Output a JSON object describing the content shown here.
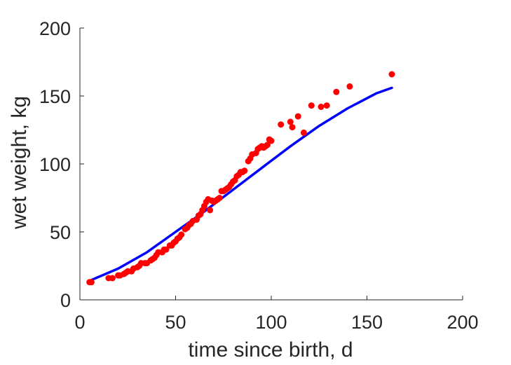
{
  "chart_data": {
    "type": "scatter",
    "title": "",
    "xlabel": "time since birth, d",
    "ylabel": "wet weight, kg",
    "xlim": [
      0,
      200
    ],
    "ylim": [
      0,
      200
    ],
    "xticks": [
      0,
      50,
      100,
      150,
      200
    ],
    "yticks": [
      0,
      50,
      100,
      150,
      200
    ],
    "xtick_labels": [
      "0",
      "50",
      "100",
      "150",
      "200"
    ],
    "ytick_labels": [
      "0",
      "50",
      "100",
      "150",
      "200"
    ],
    "grid": false,
    "legend": "none",
    "series": [
      {
        "kind": "scatter",
        "color": "#ff0000",
        "points": [
          [
            5,
            13
          ],
          [
            6,
            13
          ],
          [
            15,
            16
          ],
          [
            17,
            16
          ],
          [
            20,
            18
          ],
          [
            21,
            18
          ],
          [
            23,
            19
          ],
          [
            24,
            20
          ],
          [
            25,
            21
          ],
          [
            27,
            21
          ],
          [
            28,
            23
          ],
          [
            30,
            24
          ],
          [
            31,
            25
          ],
          [
            32,
            27
          ],
          [
            34,
            27
          ],
          [
            35,
            27
          ],
          [
            37,
            29
          ],
          [
            38,
            30
          ],
          [
            39,
            31
          ],
          [
            40,
            33
          ],
          [
            41,
            35
          ],
          [
            43,
            35
          ],
          [
            44,
            37
          ],
          [
            45,
            37
          ],
          [
            47,
            40
          ],
          [
            48,
            40
          ],
          [
            49,
            42
          ],
          [
            50,
            43
          ],
          [
            51,
            45
          ],
          [
            52,
            46
          ],
          [
            53,
            48
          ],
          [
            55,
            52
          ],
          [
            56,
            53
          ],
          [
            57,
            55
          ],
          [
            58,
            56
          ],
          [
            59,
            58
          ],
          [
            61,
            59
          ],
          [
            62,
            62
          ],
          [
            63,
            63
          ],
          [
            64,
            66
          ],
          [
            65,
            69
          ],
          [
            66,
            72
          ],
          [
            67,
            74
          ],
          [
            68,
            66
          ],
          [
            69,
            73
          ],
          [
            70,
            72
          ],
          [
            71,
            73
          ],
          [
            72,
            74
          ],
          [
            73,
            75
          ],
          [
            74,
            80
          ],
          [
            75,
            80
          ],
          [
            76,
            81
          ],
          [
            77,
            82
          ],
          [
            78,
            83
          ],
          [
            79,
            85
          ],
          [
            80,
            87
          ],
          [
            81,
            88
          ],
          [
            82,
            91
          ],
          [
            83,
            92
          ],
          [
            84,
            94
          ],
          [
            85,
            94
          ],
          [
            86,
            95
          ],
          [
            88,
            102
          ],
          [
            89,
            104
          ],
          [
            90,
            107
          ],
          [
            92,
            108
          ],
          [
            93,
            111
          ],
          [
            94,
            112
          ],
          [
            95,
            113
          ],
          [
            96,
            112
          ],
          [
            97,
            113
          ],
          [
            98,
            114
          ],
          [
            99,
            118
          ],
          [
            100,
            117
          ],
          [
            105,
            129
          ],
          [
            110,
            131
          ],
          [
            111,
            127
          ],
          [
            114,
            135
          ],
          [
            117,
            123
          ],
          [
            121,
            143
          ],
          [
            126,
            142
          ],
          [
            129,
            143
          ],
          [
            134,
            153
          ],
          [
            141,
            157
          ],
          [
            163,
            166
          ]
        ]
      },
      {
        "kind": "line",
        "color": "#0000ff",
        "points": [
          [
            5,
            14
          ],
          [
            20,
            23
          ],
          [
            35,
            35
          ],
          [
            50,
            50
          ],
          [
            65,
            65
          ],
          [
            80,
            81
          ],
          [
            95,
            97
          ],
          [
            110,
            113
          ],
          [
            125,
            128
          ],
          [
            140,
            141
          ],
          [
            155,
            152
          ],
          [
            163,
            156
          ]
        ]
      }
    ]
  }
}
